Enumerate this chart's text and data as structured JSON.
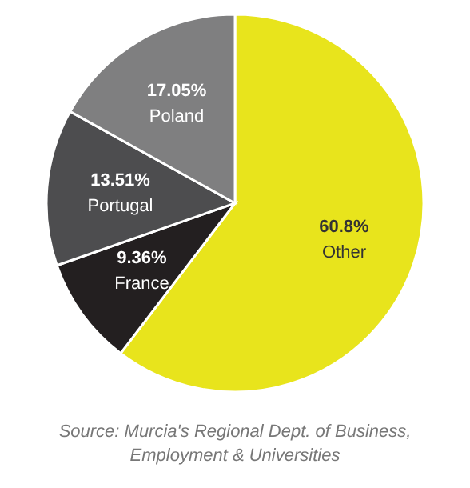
{
  "chart_data": {
    "type": "pie",
    "categories": [
      "Other",
      "France",
      "Portugal",
      "Poland"
    ],
    "values": [
      60.8,
      9.36,
      13.51,
      17.05
    ],
    "colors": [
      "#e8e41c",
      "#231f20",
      "#4d4d4f",
      "#7f7f80"
    ],
    "value_labels": [
      "60.8%",
      "9.36%",
      "13.51%",
      "17.05%"
    ],
    "annotations": [
      "Source: Murcia's Regional Dept. of Business, Employment & Universities"
    ]
  }
}
